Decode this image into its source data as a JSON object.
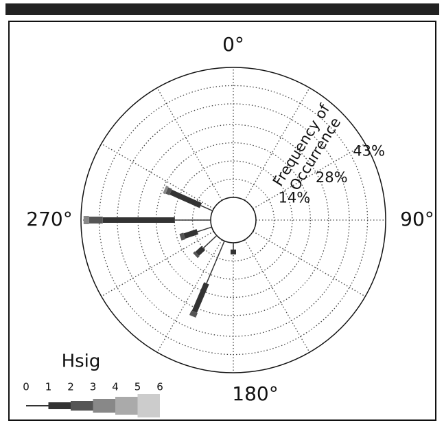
{
  "chart_data": {
    "type": "wave_rose",
    "axis_label": [
      "Frequency of",
      "Occurrence"
    ],
    "legend_title": "Hsig",
    "hsig_bins": [
      0,
      1,
      2,
      3,
      4,
      5,
      6
    ],
    "directions": [
      294,
      270,
      252,
      227,
      203,
      180
    ],
    "series": [
      {
        "color": "#333333",
        "values": [
          5,
          13.8,
          5.8,
          7.1,
          17.7,
          2.6
        ]
      },
      {
        "color": "#333333",
        "values": [
          12.7,
          27.8,
          5.3,
          3.2,
          11.9,
          1.9
        ]
      },
      {
        "color": "#555555",
        "values": [
          1.6,
          5.3,
          1.6,
          1,
          1.9,
          0
        ]
      },
      {
        "color": "#888888",
        "values": [
          1,
          2.1,
          0,
          0,
          0,
          0
        ]
      },
      {
        "color": "#aaaaaa",
        "values": [
          0,
          0,
          0,
          0,
          0,
          0
        ]
      },
      {
        "color": "#cccccc",
        "values": [
          0,
          0,
          0,
          0,
          0,
          0
        ]
      }
    ],
    "rlim": [
      0,
      50
    ],
    "rgrid": [
      7,
      14,
      21,
      28,
      36,
      43
    ],
    "rticks": [
      {
        "value": 14,
        "label": "14%"
      },
      {
        "value": 28,
        "label": "28%"
      },
      {
        "value": 43,
        "label": "43%"
      }
    ],
    "aticks": [
      {
        "value": 0,
        "label": "0°"
      },
      {
        "value": 90,
        "label": "90°"
      },
      {
        "value": 180,
        "label": "180°"
      },
      {
        "value": 270,
        "label": "270°"
      }
    ]
  }
}
